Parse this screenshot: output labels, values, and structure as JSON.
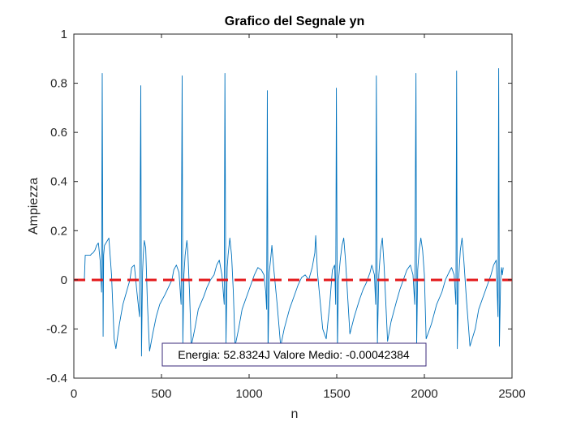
{
  "chart_data": {
    "type": "line",
    "title": "Grafico del Segnale yn",
    "xlabel": "n",
    "ylabel": "Ampiezza",
    "xlim": [
      0,
      2500
    ],
    "ylim": [
      -0.4,
      1
    ],
    "xticks": [
      0,
      500,
      1000,
      1500,
      2000,
      2500
    ],
    "xtick_labels": [
      "0",
      "500",
      "1000",
      "1500",
      "2000",
      "2500"
    ],
    "yticks": [
      -0.4,
      -0.2,
      0,
      0.2,
      0.4,
      0.6,
      0.8,
      1
    ],
    "ytick_labels": [
      "-0.4",
      "-0.2",
      "0",
      "0.2",
      "0.4",
      "0.6",
      "0.8",
      "1"
    ],
    "grid": false,
    "series": [
      {
        "color": "#0072BD",
        "style": "solid",
        "x": [
          60,
          65,
          95,
          100,
          110,
          120,
          130,
          140,
          150,
          158,
          162,
          167,
          170,
          175,
          200,
          215,
          230,
          240,
          260,
          280,
          300,
          320,
          330,
          345,
          360,
          375,
          382,
          386,
          392,
          396,
          402,
          410,
          420,
          432,
          450,
          470,
          490,
          520,
          540,
          560,
          570,
          585,
          600,
          612,
          618,
          622,
          628,
          635,
          645,
          650,
          660,
          670,
          690,
          710,
          740,
          760,
          780,
          800,
          815,
          830,
          845,
          858,
          862,
          868,
          875,
          880,
          890,
          900,
          910,
          920,
          940,
          960,
          990,
          1010,
          1030,
          1050,
          1070,
          1085,
          1095,
          1100,
          1104,
          1108,
          1115,
          1125,
          1130,
          1140,
          1160,
          1180,
          1200,
          1230,
          1260,
          1280,
          1300,
          1320,
          1340,
          1360,
          1375,
          1380,
          1390,
          1420,
          1440,
          1460,
          1475,
          1488,
          1494,
          1498,
          1504,
          1510,
          1520,
          1530,
          1540,
          1550,
          1575,
          1600,
          1630,
          1650,
          1670,
          1690,
          1700,
          1715,
          1722,
          1726,
          1732,
          1740,
          1750,
          1760,
          1770,
          1790,
          1810,
          1840,
          1860,
          1880,
          1900,
          1920,
          1935,
          1945,
          1952,
          1956,
          1962,
          1970,
          1980,
          1990,
          2000,
          2010,
          2040,
          2070,
          2100,
          2120,
          2140,
          2155,
          2170,
          2180,
          2184,
          2188,
          2195,
          2205,
          2215,
          2225,
          2240,
          2260,
          2290,
          2310,
          2340,
          2360,
          2380,
          2395,
          2410,
          2420,
          2424,
          2428,
          2435,
          2440,
          2445,
          2450
        ],
        "y": [
          0.0,
          0.1,
          0.1,
          0.105,
          0.11,
          0.12,
          0.14,
          0.15,
          0.08,
          -0.05,
          0.84,
          -0.23,
          0.1,
          0.14,
          0.17,
          0.02,
          -0.24,
          -0.28,
          -0.18,
          -0.1,
          -0.05,
          0.0,
          0.05,
          0.06,
          -0.05,
          -0.15,
          0.79,
          -0.31,
          0.03,
          0.1,
          0.16,
          0.13,
          -0.1,
          -0.29,
          -0.22,
          -0.15,
          -0.1,
          -0.06,
          -0.03,
          0.0,
          0.04,
          0.06,
          0.03,
          -0.1,
          0.83,
          -0.26,
          0.02,
          0.1,
          0.16,
          0.12,
          -0.05,
          -0.27,
          -0.2,
          -0.12,
          -0.07,
          -0.03,
          0.0,
          0.02,
          0.06,
          0.08,
          0.02,
          -0.1,
          0.84,
          -0.26,
          0.05,
          0.1,
          0.17,
          0.1,
          -0.05,
          -0.27,
          -0.2,
          -0.12,
          -0.06,
          -0.02,
          0.02,
          0.05,
          0.04,
          0.02,
          -0.05,
          -0.12,
          0.77,
          -0.3,
          0.03,
          0.1,
          0.14,
          0.05,
          -0.1,
          -0.27,
          -0.2,
          -0.12,
          -0.06,
          -0.02,
          0.01,
          0.02,
          0.0,
          0.05,
          0.11,
          0.18,
          0.03,
          -0.2,
          -0.24,
          -0.1,
          0.04,
          0.06,
          -0.1,
          0.78,
          -0.28,
          0.0,
          0.08,
          0.14,
          0.17,
          0.08,
          -0.22,
          -0.15,
          -0.08,
          -0.04,
          -0.01,
          0.03,
          0.06,
          0.02,
          -0.1,
          0.83,
          -0.26,
          0.02,
          0.12,
          0.17,
          0.06,
          -0.25,
          -0.17,
          -0.09,
          -0.04,
          0.0,
          0.04,
          0.06,
          0.02,
          -0.1,
          0.84,
          -0.27,
          0.04,
          0.12,
          0.17,
          0.12,
          0.02,
          -0.24,
          -0.18,
          -0.1,
          -0.05,
          0.0,
          0.03,
          0.05,
          0.02,
          -0.1,
          0.85,
          -0.28,
          0.0,
          0.12,
          0.17,
          0.08,
          -0.08,
          -0.27,
          -0.2,
          -0.12,
          -0.06,
          -0.02,
          0.02,
          0.06,
          0.08,
          -0.15,
          0.86,
          -0.27,
          0.0,
          0.05,
          0.02,
          0.05
        ]
      },
      {
        "color": "#E31A1C",
        "style": "dashed",
        "x": [
          0,
          2500
        ],
        "y": [
          -0.00042384,
          -0.00042384
        ]
      }
    ],
    "annotations": [
      {
        "text": "Energia: 52.8324J  Valore Medio: -0.00042384"
      }
    ]
  }
}
